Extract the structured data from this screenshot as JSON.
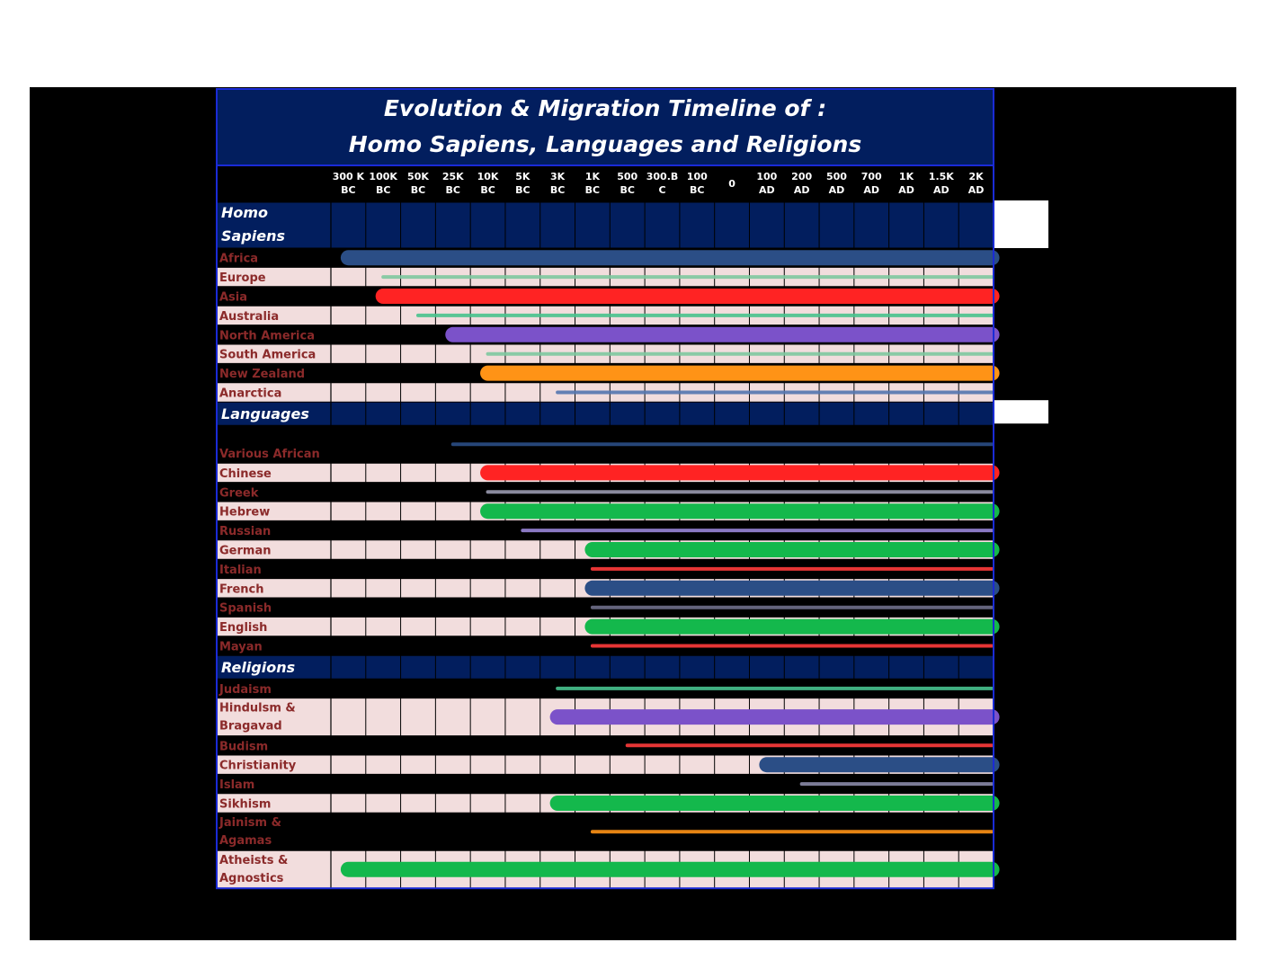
{
  "chart_data": {
    "type": "timeline",
    "title": [
      "Evolution & Migration Timeline of :",
      "Homo Sapiens, Languages and Religions"
    ],
    "columns": [
      [
        "300 K",
        "BC"
      ],
      [
        "100K",
        "BC"
      ],
      [
        "50K",
        "BC"
      ],
      [
        "25K",
        "BC"
      ],
      [
        "10K",
        "BC"
      ],
      [
        "5K",
        "BC"
      ],
      [
        "3K",
        "BC"
      ],
      [
        "1K",
        "BC"
      ],
      [
        "500",
        "BC"
      ],
      [
        "300.B",
        "C"
      ],
      [
        "100",
        "BC"
      ],
      [
        "0"
      ],
      [
        "100",
        "AD"
      ],
      [
        "200",
        "AD"
      ],
      [
        "500",
        "AD"
      ],
      [
        "700",
        "AD"
      ],
      [
        "1K",
        "AD"
      ],
      [
        "1.5K",
        "AD"
      ],
      [
        "2K",
        "AD"
      ]
    ],
    "sections": [
      {
        "label": [
          "Homo",
          "Sapiens"
        ],
        "rows": [
          {
            "label": [
              "Africa"
            ],
            "start": "300 K BC",
            "end": "2K AD",
            "color": "#2b4e86",
            "thick": true
          },
          {
            "label": [
              "Europe"
            ],
            "start": "100K BC",
            "end": "2K AD",
            "color": "#7fc9a0",
            "thick": false
          },
          {
            "label": [
              "Asia"
            ],
            "start": "100K BC",
            "end": "2K AD",
            "color": "#ff2323",
            "thick": true
          },
          {
            "label": [
              "Australia"
            ],
            "start": "50K BC",
            "end": "2K AD",
            "color": "#49c38e",
            "thick": false
          },
          {
            "label": [
              "North America"
            ],
            "start": "25K BC",
            "end": "2K AD",
            "color": "#7b52c9",
            "thick": true
          },
          {
            "label": [
              "South America"
            ],
            "start": "10K BC",
            "end": "2K AD",
            "color": "#7fc9a0",
            "thick": false
          },
          {
            "label": [
              "New Zealand"
            ],
            "start": "10K BC",
            "end": "2K AD",
            "color": "#ff9316",
            "thick": true
          },
          {
            "label": [
              "Anarctica"
            ],
            "start": "3K BC",
            "end": "2K AD",
            "color": "#5577b0",
            "thick": false
          }
        ]
      },
      {
        "label": [
          "Languages"
        ],
        "rows": [
          {
            "label": [
              "Various African"
            ],
            "start": "25K BC",
            "end": "2K AD",
            "color": "#2b4e86",
            "thick": false,
            "tall": true
          },
          {
            "label": [
              "Chinese"
            ],
            "start": "10K BC",
            "end": "2K AD",
            "color": "#ff2323",
            "thick": true
          },
          {
            "label": [
              "Greek"
            ],
            "start": "10K BC",
            "end": "2K AD",
            "color": "#9a9ab0",
            "thick": false
          },
          {
            "label": [
              "Hebrew"
            ],
            "start": "10K BC",
            "end": "2K AD",
            "color": "#14b84c",
            "thick": true
          },
          {
            "label": [
              "Russian"
            ],
            "start": "5K BC",
            "end": "2K AD",
            "color": "#9a85d8",
            "thick": false
          },
          {
            "label": [
              "German"
            ],
            "start": "1K BC",
            "end": "2K AD",
            "color": "#14b84c",
            "thick": true
          },
          {
            "label": [
              "Italian"
            ],
            "start": "1K BC",
            "end": "2K AD",
            "color": "#ff3b3b",
            "thick": false
          },
          {
            "label": [
              "French"
            ],
            "start": "1K BC",
            "end": "2K AD",
            "color": "#2b4e86",
            "thick": true
          },
          {
            "label": [
              "Spanish"
            ],
            "start": "1K BC",
            "end": "2K AD",
            "color": "#6f6f8a",
            "thick": false
          },
          {
            "label": [
              "English"
            ],
            "start": "1K BC",
            "end": "2K AD",
            "color": "#14b84c",
            "thick": true
          },
          {
            "label": [
              "Mayan"
            ],
            "start": "1K BC",
            "end": "2K AD",
            "color": "#ff3b3b",
            "thick": false
          }
        ]
      },
      {
        "label": [
          "Religions"
        ],
        "rows": [
          {
            "label": [
              "Judaism"
            ],
            "start": "3K BC",
            "end": "2K AD",
            "color": "#49c38e",
            "thick": false
          },
          {
            "label": [
              "Hindulsm &",
              "Bragavad"
            ],
            "start": "3K BC",
            "end": "2K AD",
            "color": "#7b52c9",
            "thick": true,
            "tall": true
          },
          {
            "label": [
              "Budism"
            ],
            "start": "500 BC",
            "end": "2K AD",
            "color": "#ff3b3b",
            "thick": false
          },
          {
            "label": [
              "Christianity"
            ],
            "start": "100 AD",
            "end": "2K AD",
            "color": "#2b4e86",
            "thick": true
          },
          {
            "label": [
              "Islam"
            ],
            "start": "200 AD",
            "end": "2K AD",
            "color": "#8a8aa8",
            "thick": false
          },
          {
            "label": [
              "Sikhism"
            ],
            "start": "3K BC",
            "end": "2K AD",
            "color": "#14b84c",
            "thick": true
          },
          {
            "label": [
              "Jainism &",
              "Agamas"
            ],
            "start": "1K BC",
            "end": "2K AD",
            "color": "#ff9316",
            "thick": false,
            "tall": true
          },
          {
            "label": [
              "Atheists &",
              "Agnostics"
            ],
            "start": "300 K BC",
            "end": "2K AD",
            "color": "#14b84c",
            "thick": true,
            "tall": true
          }
        ]
      }
    ]
  }
}
